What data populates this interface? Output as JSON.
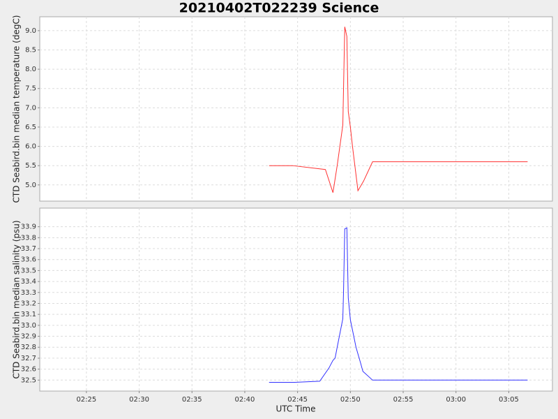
{
  "chart_data": [
    {
      "type": "line",
      "title": "20210402T022239 Science",
      "ylabel": "CTD Seabird.bin median temperature (degC)",
      "ylim": [
        4.58,
        9.36
      ],
      "yticks": [
        {
          "value": 5.0,
          "label": "5.0"
        },
        5.5,
        {
          "value": 6.0,
          "label": "6.0"
        },
        6.5,
        {
          "value": 7.0,
          "label": "7.0"
        },
        7.5,
        {
          "value": 8.0,
          "label": "8.0"
        },
        8.5,
        {
          "value": 9.0,
          "label": "9.0"
        }
      ],
      "grid": true,
      "x": [
        "02:42:18",
        "02:44:32",
        "02:47:38",
        "02:48:21",
        "02:48:45",
        "02:49:17",
        "02:49:28",
        "02:49:40",
        "02:49:48",
        "02:50:00",
        "02:50:12",
        "02:50:43",
        "02:51:15",
        "02:52:06",
        "03:06:47"
      ],
      "series": [
        {
          "color": "#ff3030",
          "values": [
            5.5,
            5.5,
            5.4,
            4.8,
            5.5,
            6.55,
            9.1,
            8.85,
            6.9,
            6.5,
            6.0,
            4.85,
            5.1,
            5.6,
            5.6
          ]
        }
      ]
    },
    {
      "type": "line",
      "ylabel": "CTD Seabird.bin median salinity (psu)",
      "xlabel": "UTC Time",
      "xlim": [
        "02:20:35",
        "03:09:08"
      ],
      "xticks": [
        "02:25",
        "02:30",
        "02:35",
        "02:40",
        "02:45",
        "02:50",
        "02:55",
        "03:00",
        "03:05"
      ],
      "ylim": [
        32.4,
        34.07
      ],
      "yticks": [
        32.5,
        32.6,
        32.7,
        32.8,
        32.9,
        {
          "value": 33.0,
          "label": "33.0"
        },
        33.1,
        33.2,
        33.3,
        33.4,
        33.5,
        33.6,
        33.7,
        33.8,
        33.9
      ],
      "grid": true,
      "x": [
        "02:42:18",
        "02:44:44",
        "02:47:06",
        "02:47:58",
        "02:48:21",
        "02:48:33",
        "02:48:45",
        "02:49:17",
        "02:49:21",
        "02:49:28",
        "02:49:40",
        "02:49:48",
        "02:50:00",
        "02:50:32",
        "02:50:59",
        "02:51:11",
        "02:52:06",
        "03:06:47"
      ],
      "series": [
        {
          "color": "#3030ff",
          "values": [
            32.48,
            32.48,
            32.49,
            32.61,
            32.68,
            32.7,
            32.8,
            33.06,
            33.3,
            33.88,
            33.89,
            33.25,
            33.05,
            32.8,
            32.65,
            32.58,
            32.5,
            32.5
          ]
        }
      ]
    }
  ]
}
